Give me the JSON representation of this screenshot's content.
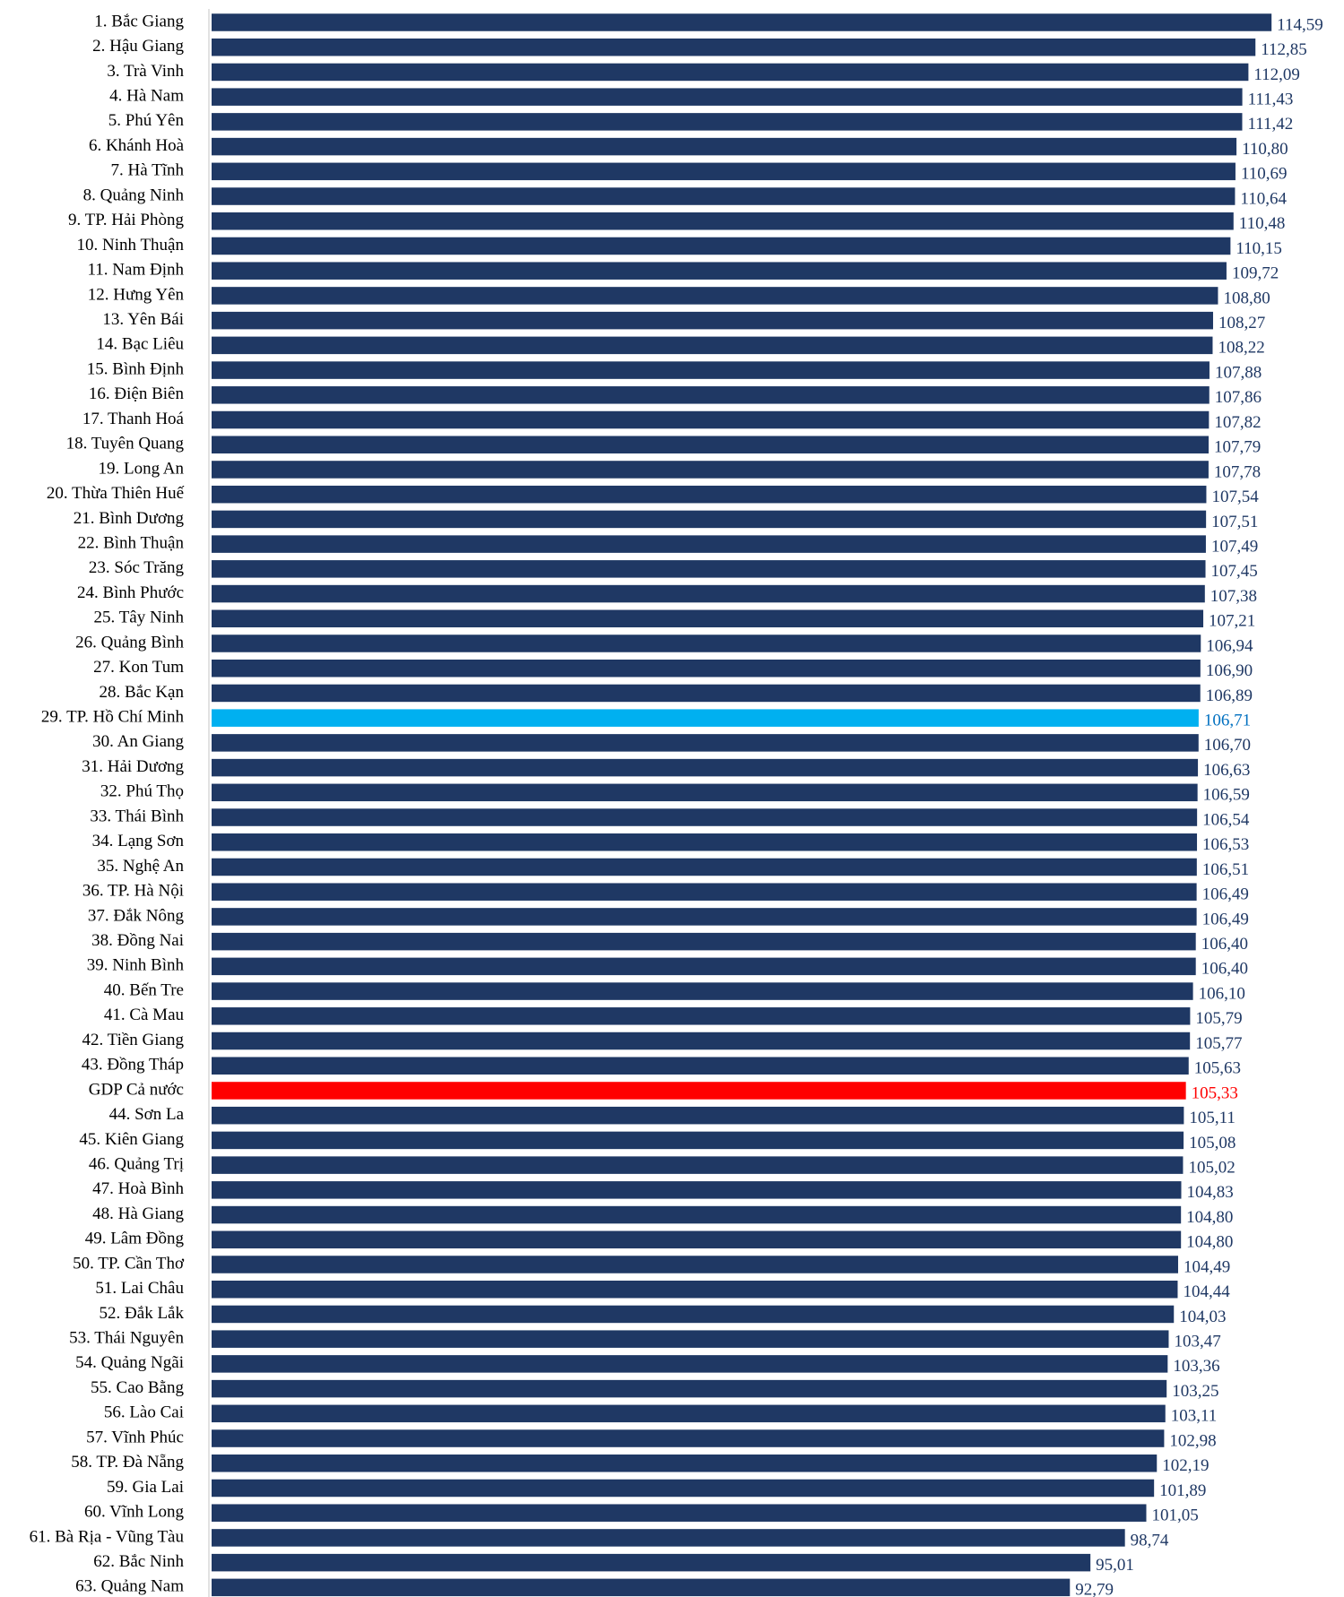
{
  "chart_data": {
    "type": "barh",
    "categories": [
      "1. Bắc Giang",
      "2. Hậu Giang",
      "3. Trà Vinh",
      "4. Hà Nam",
      "5. Phú Yên",
      "6. Khánh Hoà",
      "7. Hà Tĩnh",
      "8. Quảng Ninh",
      "9. TP. Hải Phòng",
      "10. Ninh Thuận",
      "11. Nam Định",
      "12. Hưng Yên",
      "13. Yên Bái",
      "14. Bạc Liêu",
      "15. Bình Định",
      "16. Điện Biên",
      "17. Thanh Hoá",
      "18. Tuyên Quang",
      "19. Long An",
      "20. Thừa Thiên Huế",
      "21. Bình Dương",
      "22. Bình Thuận",
      "23. Sóc Trăng",
      "24. Bình Phước",
      "25. Tây Ninh",
      "26. Quảng Bình",
      "27. Kon Tum",
      "28. Bắc Kạn",
      "29. TP. Hồ Chí Minh",
      "30. An Giang",
      "31. Hải Dương",
      "32. Phú Thọ",
      "33. Thái Bình",
      "34. Lạng Sơn",
      "35. Nghệ An",
      "36. TP. Hà Nội",
      "37. Đắk Nông",
      "38. Đồng Nai",
      "39. Ninh Bình",
      "40. Bến Tre",
      "41. Cà Mau",
      "42. Tiền Giang",
      "43. Đồng Tháp",
      "GDP Cả nước",
      "44. Sơn La",
      "45. Kiên Giang",
      "46. Quảng Trị",
      "47. Hoà Bình",
      "48. Hà Giang",
      "49. Lâm Đồng",
      "50. TP. Cần Thơ",
      "51. Lai Châu",
      "52. Đắk Lắk",
      "53. Thái Nguyên",
      "54. Quảng Ngãi",
      "55. Cao Bằng",
      "56. Lào Cai",
      "57. Vĩnh Phúc",
      "58. TP. Đà Nẵng",
      "59. Gia Lai",
      "60. Vĩnh Long",
      "61. Bà Rịa - Vũng Tàu",
      "62. Bắc Ninh",
      "63. Quảng Nam"
    ],
    "values": [
      114.59,
      112.85,
      112.09,
      111.43,
      111.42,
      110.8,
      110.69,
      110.64,
      110.48,
      110.15,
      109.72,
      108.8,
      108.27,
      108.22,
      107.88,
      107.86,
      107.82,
      107.79,
      107.78,
      107.54,
      107.51,
      107.49,
      107.45,
      107.38,
      107.21,
      106.94,
      106.9,
      106.89,
      106.71,
      106.7,
      106.63,
      106.59,
      106.54,
      106.53,
      106.51,
      106.49,
      106.49,
      106.4,
      106.4,
      106.1,
      105.79,
      105.77,
      105.63,
      105.33,
      105.11,
      105.08,
      105.02,
      104.83,
      104.8,
      104.8,
      104.49,
      104.44,
      104.03,
      103.47,
      103.36,
      103.25,
      103.11,
      102.98,
      102.19,
      101.89,
      101.05,
      98.74,
      95.01,
      92.79
    ],
    "value_labels": [
      "114,59",
      "112,85",
      "112,09",
      "111,43",
      "111,42",
      "110,80",
      "110,69",
      "110,64",
      "110,48",
      "110,15",
      "109,72",
      "108,80",
      "108,27",
      "108,22",
      "107,88",
      "107,86",
      "107,82",
      "107,79",
      "107,78",
      "107,54",
      "107,51",
      "107,49",
      "107,45",
      "107,38",
      "107,21",
      "106,94",
      "106,90",
      "106,89",
      "106,71",
      "106,70",
      "106,63",
      "106,59",
      "106,54",
      "106,53",
      "106,51",
      "106,49",
      "106,49",
      "106,40",
      "106,40",
      "106,10",
      "105,79",
      "105,77",
      "105,63",
      "105,33",
      "105,11",
      "105,08",
      "105,02",
      "104,83",
      "104,80",
      "104,80",
      "104,49",
      "104,44",
      "104,03",
      "103,47",
      "103,36",
      "103,25",
      "103,11",
      "102,98",
      "102,19",
      "101,89",
      "101,05",
      "98,74",
      "95,01",
      "92,79"
    ],
    "color": "#1f3864",
    "highlights": [
      {
        "index": 28,
        "color": "#00b0f0",
        "label_color": "#0070c0"
      },
      {
        "index": 43,
        "color": "#ff0000",
        "label_color": "#ff0000"
      }
    ],
    "xlim": [
      0,
      120
    ]
  }
}
